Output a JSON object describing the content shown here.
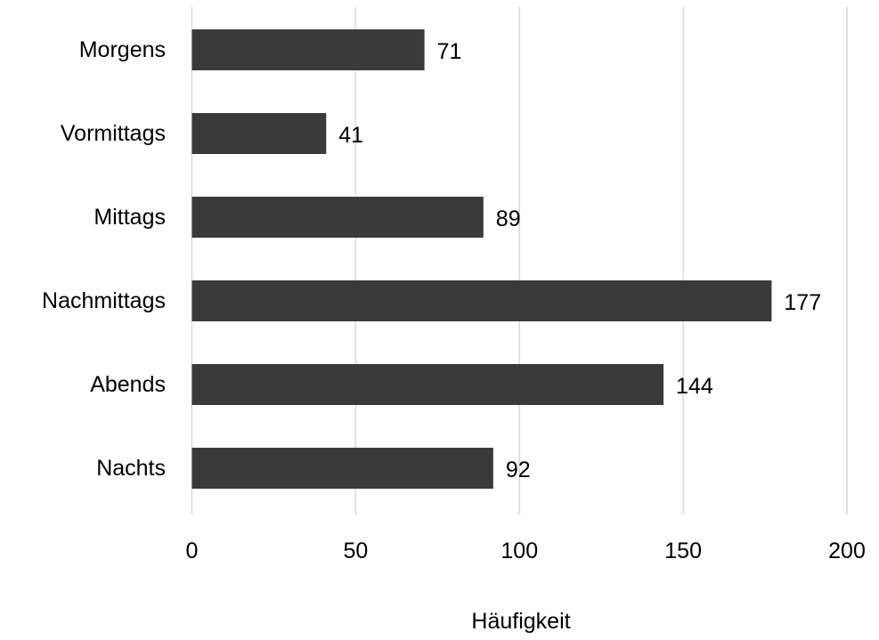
{
  "chart_data": {
    "type": "bar",
    "orientation": "horizontal",
    "categories": [
      "Morgens",
      "Vormittags",
      "Mittags",
      "Nachmittags",
      "Abends",
      "Nachts"
    ],
    "values": [
      71,
      41,
      89,
      177,
      144,
      92
    ],
    "xlabel": "Häufigkeit",
    "ylabel": "",
    "xlim": [
      0,
      200
    ],
    "xticks": [
      0,
      50,
      100,
      150,
      200
    ],
    "grid": "vertical",
    "legend": "none",
    "data_labels": true,
    "bar_color": "#3a3a3a",
    "gridline_color": "#d9d9d9"
  }
}
